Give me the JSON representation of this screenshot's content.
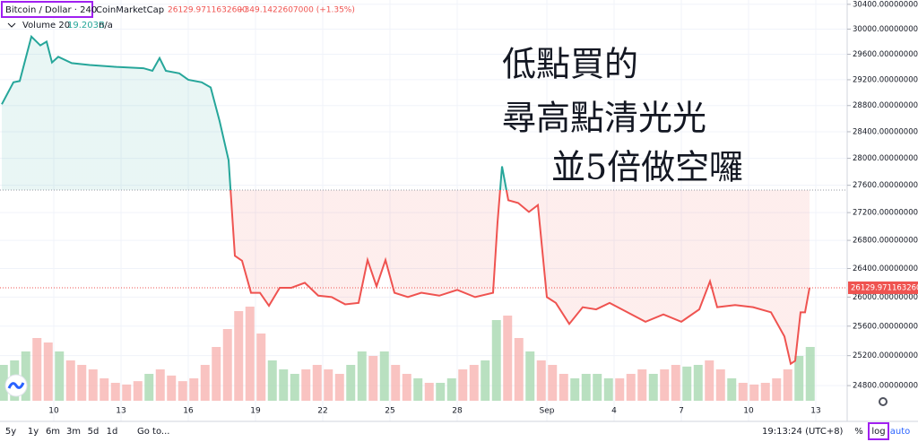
{
  "chart_data": {
    "type": "baseline",
    "symbol_label": "Bitcoin / Dollar · 240",
    "source": "CoinMarketCap",
    "last_label": "26129.9711632600",
    "change_label": "+349.1422607000 (+1.35%)",
    "volume_label": "Volume 20",
    "volume_value_label": "19.203B",
    "volume_extra": "n/a",
    "annotations": [
      "低點買的",
      "尋高點清光光",
      "並5倍做空囉"
    ],
    "annotation_color": "#a020f0",
    "log_scale": true,
    "grid": true,
    "baseline": 27530,
    "up_color": "#26a69a",
    "down_color": "#ef5350",
    "xlim": [
      -2.4,
      35.4
    ],
    "xticks": [
      {
        "value": 0,
        "label": "10"
      },
      {
        "value": 3,
        "label": "13"
      },
      {
        "value": 6,
        "label": "16"
      },
      {
        "value": 9,
        "label": "19"
      },
      {
        "value": 12,
        "label": "22"
      },
      {
        "value": 15,
        "label": "25"
      },
      {
        "value": 18,
        "label": "28"
      },
      {
        "value": 22,
        "label": "Sep"
      },
      {
        "value": 25,
        "label": "4"
      },
      {
        "value": 28,
        "label": "7"
      },
      {
        "value": 31,
        "label": "10"
      },
      {
        "value": 34,
        "label": "13"
      }
    ],
    "ylim": [
      24600,
      30470
    ],
    "yticks": [
      {
        "value": 24800,
        "label": "24800.0000000000"
      },
      {
        "value": 25200,
        "label": "25200.0000000000"
      },
      {
        "value": 25600,
        "label": "25600.0000000000"
      },
      {
        "value": 26000,
        "label": "26000.0000000000"
      },
      {
        "value": 26400,
        "label": "26400.0000000000"
      },
      {
        "value": 26800,
        "label": "26800.0000000000"
      },
      {
        "value": 27200,
        "label": "27200.0000000000"
      },
      {
        "value": 27600,
        "label": "27600.0000000000"
      },
      {
        "value": 28000,
        "label": "28000.0000000000"
      },
      {
        "value": 28400,
        "label": "28400.0000000000"
      },
      {
        "value": 28800,
        "label": "28800.0000000000"
      },
      {
        "value": 29200,
        "label": "29200.0000000000"
      },
      {
        "value": 29600,
        "label": "29600.0000000000"
      },
      {
        "value": 30000,
        "label": "30000.0000000000"
      },
      {
        "value": 30400,
        "label": "30400.0000000000"
      }
    ],
    "series": [
      {
        "name": "Bitcoin / Dollar",
        "x": [
          -2.32,
          -1.8,
          -1.52,
          -1.0,
          -0.6,
          -0.32,
          -0.08,
          0.2,
          0.8,
          1.6,
          2.8,
          4.0,
          4.4,
          4.72,
          5.0,
          5.6,
          6.0,
          6.6,
          7.0,
          7.4,
          7.8,
          8.08,
          8.4,
          8.8,
          9.2,
          9.6,
          10.08,
          10.6,
          11.2,
          11.8,
          12.4,
          13.0,
          13.6,
          14.0,
          14.4,
          14.8,
          15.2,
          15.8,
          16.4,
          17.2,
          18.0,
          18.8,
          19.6,
          19.8,
          20.0,
          20.28,
          20.72,
          21.2,
          21.6,
          22.0,
          22.4,
          23.0,
          23.6,
          24.2,
          24.8,
          25.6,
          26.4,
          27.2,
          28.0,
          28.8,
          29.28,
          29.6,
          30.4,
          31.2,
          32.0,
          32.6,
          32.88,
          33.08,
          33.32,
          33.52,
          33.72
        ],
        "values": [
          28820,
          29160,
          29180,
          29880,
          29740,
          29800,
          29470,
          29560,
          29460,
          29430,
          29400,
          29380,
          29340,
          29540,
          29340,
          29300,
          29200,
          29160,
          29080,
          28560,
          27970,
          26580,
          26510,
          26060,
          26060,
          25880,
          26130,
          26130,
          26200,
          26020,
          26000,
          25900,
          25920,
          26520,
          26150,
          26520,
          26060,
          26000,
          26060,
          26020,
          26100,
          26000,
          26060,
          27060,
          27880,
          27380,
          27340,
          27210,
          27310,
          26000,
          25920,
          25630,
          25860,
          25830,
          25920,
          25790,
          25660,
          25760,
          25660,
          25830,
          26220,
          25860,
          25890,
          25860,
          25790,
          25460,
          25090,
          25130,
          25790,
          25790,
          26129.97116326
        ]
      }
    ],
    "volume": {
      "name": "Volume",
      "up_color": "#a8d8b0",
      "down_color": "#f8b4b2",
      "x": [
        -2.25,
        -1.75,
        -1.25,
        -0.75,
        -0.25,
        0.25,
        0.75,
        1.25,
        1.75,
        2.25,
        2.75,
        3.25,
        3.75,
        4.25,
        4.75,
        5.25,
        5.75,
        6.25,
        6.75,
        7.25,
        7.75,
        8.25,
        8.75,
        9.25,
        9.75,
        10.25,
        10.75,
        11.25,
        11.75,
        12.25,
        12.75,
        13.25,
        13.75,
        14.25,
        14.75,
        15.25,
        15.75,
        16.25,
        16.75,
        17.25,
        17.75,
        18.25,
        18.75,
        19.25,
        19.75,
        20.25,
        20.75,
        21.25,
        21.75,
        22.25,
        22.75,
        23.25,
        23.75,
        24.25,
        24.75,
        25.25,
        25.75,
        26.25,
        26.75,
        27.25,
        27.75,
        28.25,
        28.75,
        29.25,
        29.75,
        30.25,
        30.75,
        31.25,
        31.75,
        32.25,
        32.75,
        33.25,
        33.75
      ],
      "values": [
        12.8,
        14.4,
        17.6,
        22.4,
        20.8,
        17.6,
        14.4,
        12.8,
        11.2,
        8,
        6.4,
        5.8,
        7,
        9.6,
        11.2,
        9,
        7,
        8,
        12.8,
        19.2,
        25.6,
        32,
        33.6,
        24,
        14.4,
        11.2,
        9.6,
        11.2,
        12.8,
        11.2,
        9.6,
        12.8,
        17.6,
        16,
        17.6,
        12.8,
        9.6,
        8,
        6.4,
        6.4,
        8,
        11.2,
        12.8,
        14.4,
        28.8,
        30.4,
        22.4,
        17.6,
        14.4,
        12.8,
        9.6,
        8,
        9.6,
        9.6,
        8,
        8,
        9.6,
        11.2,
        9.6,
        11.2,
        12.8,
        12.2,
        12.8,
        14.4,
        11.2,
        8,
        6.4,
        5.8,
        6.4,
        8,
        11.2,
        16,
        19.203
      ]
    },
    "timeframes": [
      "5y",
      "1y",
      "6m",
      "3m",
      "5d",
      "1d"
    ],
    "goto_label": "Go to...",
    "clock": "19:13:24 (UTC+8)",
    "scale_buttons": [
      "%",
      "log",
      "auto"
    ]
  }
}
